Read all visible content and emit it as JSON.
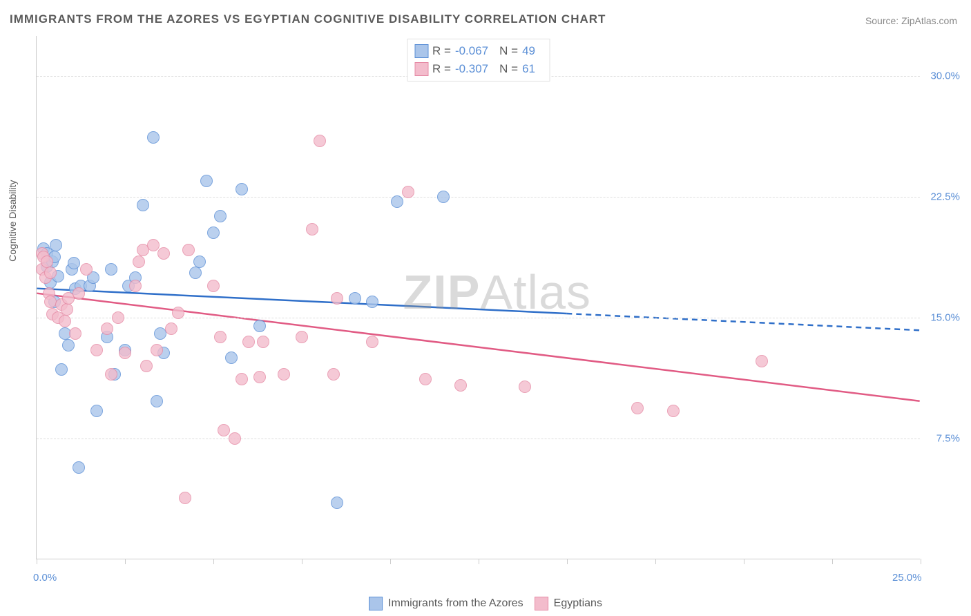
{
  "title": "IMMIGRANTS FROM THE AZORES VS EGYPTIAN COGNITIVE DISABILITY CORRELATION CHART",
  "source_label": "Source: ",
  "source_name": "ZipAtlas.com",
  "watermark_a": "ZIP",
  "watermark_b": "Atlas",
  "y_axis_label": "Cognitive Disability",
  "chart": {
    "type": "scatter-with-trend",
    "background_color": "#ffffff",
    "grid_color": "#dddddd",
    "axis_color": "#cccccc",
    "tick_label_color": "#5b8fd6",
    "xlim": [
      0,
      25
    ],
    "ylim": [
      0,
      32.5
    ],
    "x_ticks": [
      0,
      2.5,
      5,
      7.5,
      10,
      12.5,
      15,
      17.5,
      20,
      22.5,
      25
    ],
    "x_tick_labels": {
      "0": "0.0%",
      "25": "25.0%"
    },
    "y_ticks": [
      7.5,
      15.0,
      22.5,
      30.0
    ],
    "y_tick_labels": [
      "7.5%",
      "15.0%",
      "22.5%",
      "30.0%"
    ],
    "point_radius": 9,
    "point_stroke_width": 1.5,
    "point_fill_opacity": 0.35,
    "trend_line_width": 2.5
  },
  "series": [
    {
      "name": "Immigrants from the Azores",
      "color_stroke": "#5b8fd6",
      "color_fill": "#aac5ea",
      "trend_color": "#2f6fc9",
      "trend_dash_after_x": 15,
      "R": "-0.067",
      "N": "49",
      "trend": {
        "x1": 0,
        "y1": 16.8,
        "x2": 25,
        "y2": 14.2
      },
      "points": [
        [
          0.2,
          19.3
        ],
        [
          0.3,
          18.2
        ],
        [
          0.3,
          19.0
        ],
        [
          0.4,
          17.2
        ],
        [
          0.45,
          18.5
        ],
        [
          0.5,
          18.8
        ],
        [
          0.5,
          16.0
        ],
        [
          0.55,
          19.5
        ],
        [
          0.6,
          17.6
        ],
        [
          0.7,
          11.8
        ],
        [
          0.8,
          14.0
        ],
        [
          0.9,
          13.3
        ],
        [
          1.0,
          18.0
        ],
        [
          1.05,
          18.4
        ],
        [
          1.1,
          16.8
        ],
        [
          1.2,
          5.7
        ],
        [
          1.25,
          17.0
        ],
        [
          1.5,
          17.0
        ],
        [
          1.6,
          17.5
        ],
        [
          1.7,
          9.2
        ],
        [
          2.0,
          13.8
        ],
        [
          2.1,
          18.0
        ],
        [
          2.2,
          11.5
        ],
        [
          2.5,
          13.0
        ],
        [
          2.6,
          17.0
        ],
        [
          2.8,
          17.5
        ],
        [
          3.0,
          22.0
        ],
        [
          3.3,
          26.2
        ],
        [
          3.4,
          9.8
        ],
        [
          3.5,
          14.0
        ],
        [
          3.6,
          12.8
        ],
        [
          4.5,
          17.8
        ],
        [
          4.6,
          18.5
        ],
        [
          4.8,
          23.5
        ],
        [
          5.0,
          20.3
        ],
        [
          5.2,
          21.3
        ],
        [
          5.5,
          12.5
        ],
        [
          5.8,
          23.0
        ],
        [
          6.3,
          14.5
        ],
        [
          8.5,
          3.5
        ],
        [
          9.0,
          16.2
        ],
        [
          9.5,
          16.0
        ],
        [
          10.2,
          22.2
        ],
        [
          11.5,
          22.5
        ]
      ]
    },
    {
      "name": "Egyptians",
      "color_stroke": "#e68aa5",
      "color_fill": "#f3bccc",
      "trend_color": "#e15b84",
      "trend_dash_after_x": 25,
      "R": "-0.307",
      "N": "61",
      "trend": {
        "x1": 0,
        "y1": 16.5,
        "x2": 25,
        "y2": 9.8
      },
      "points": [
        [
          0.15,
          19.0
        ],
        [
          0.15,
          18.0
        ],
        [
          0.2,
          18.8
        ],
        [
          0.25,
          17.5
        ],
        [
          0.3,
          18.5
        ],
        [
          0.35,
          16.5
        ],
        [
          0.4,
          17.8
        ],
        [
          0.4,
          16.0
        ],
        [
          0.45,
          15.2
        ],
        [
          0.6,
          15.0
        ],
        [
          0.7,
          15.8
        ],
        [
          0.8,
          14.8
        ],
        [
          0.85,
          15.5
        ],
        [
          0.9,
          16.2
        ],
        [
          1.1,
          14.0
        ],
        [
          1.2,
          16.5
        ],
        [
          1.4,
          18.0
        ],
        [
          1.7,
          13.0
        ],
        [
          2.0,
          14.3
        ],
        [
          2.1,
          11.5
        ],
        [
          2.3,
          15.0
        ],
        [
          2.5,
          12.8
        ],
        [
          2.8,
          17.0
        ],
        [
          2.9,
          18.5
        ],
        [
          3.0,
          19.2
        ],
        [
          3.1,
          12.0
        ],
        [
          3.3,
          19.5
        ],
        [
          3.4,
          13.0
        ],
        [
          3.6,
          19.0
        ],
        [
          3.8,
          14.3
        ],
        [
          4.0,
          15.3
        ],
        [
          4.2,
          3.8
        ],
        [
          4.3,
          19.2
        ],
        [
          5.0,
          17.0
        ],
        [
          5.2,
          13.8
        ],
        [
          5.3,
          8.0
        ],
        [
          5.6,
          7.5
        ],
        [
          5.8,
          11.2
        ],
        [
          6.0,
          13.5
        ],
        [
          6.3,
          11.3
        ],
        [
          6.4,
          13.5
        ],
        [
          7.0,
          11.5
        ],
        [
          7.5,
          13.8
        ],
        [
          7.8,
          20.5
        ],
        [
          8.0,
          26.0
        ],
        [
          8.4,
          11.5
        ],
        [
          8.5,
          16.2
        ],
        [
          9.5,
          13.5
        ],
        [
          10.5,
          22.8
        ],
        [
          11.0,
          11.2
        ],
        [
          12.0,
          10.8
        ],
        [
          13.8,
          10.7
        ],
        [
          17.0,
          9.4
        ],
        [
          18.0,
          9.2
        ],
        [
          20.5,
          12.3
        ]
      ]
    }
  ],
  "legend_labels": {
    "R": "R = ",
    "N": "N = "
  }
}
